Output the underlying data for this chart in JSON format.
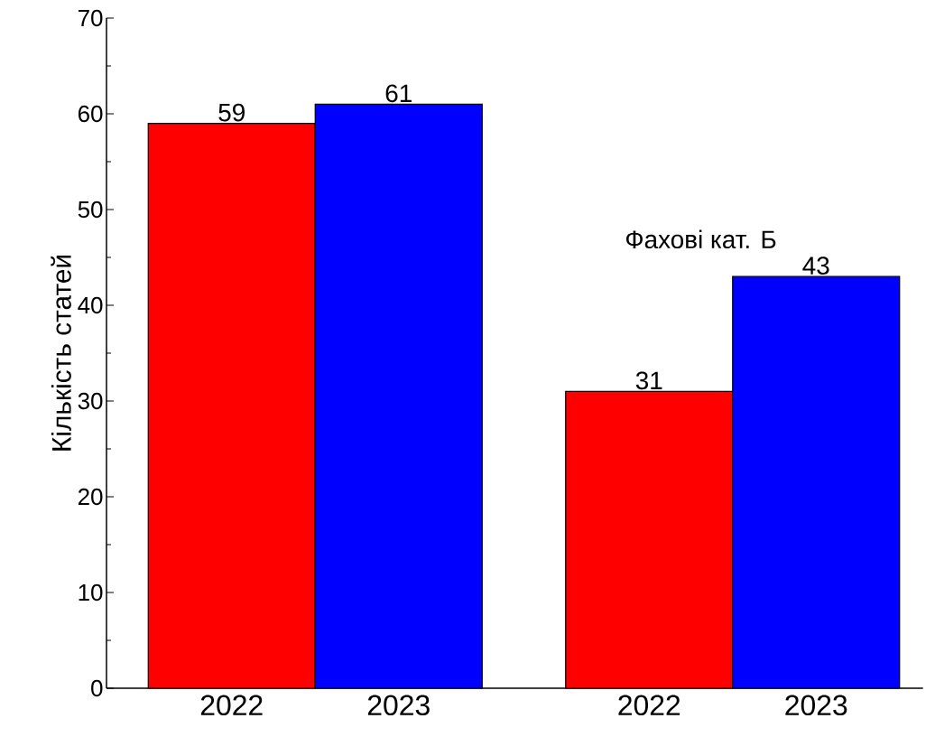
{
  "chart_data": {
    "type": "bar",
    "ylabel": "Кількість статей",
    "categories": [
      "2022",
      "2023",
      "2022",
      "2023"
    ],
    "values": [
      59,
      61,
      31,
      43
    ],
    "colors": [
      "#ff0000",
      "#0000ff",
      "#ff0000",
      "#0000ff"
    ],
    "data_labels": true,
    "annotations": [
      "Фахові кат. Б"
    ],
    "ylim": [
      0,
      70
    ],
    "yticks": [
      0,
      10,
      20,
      30,
      40,
      50,
      60,
      70
    ]
  }
}
